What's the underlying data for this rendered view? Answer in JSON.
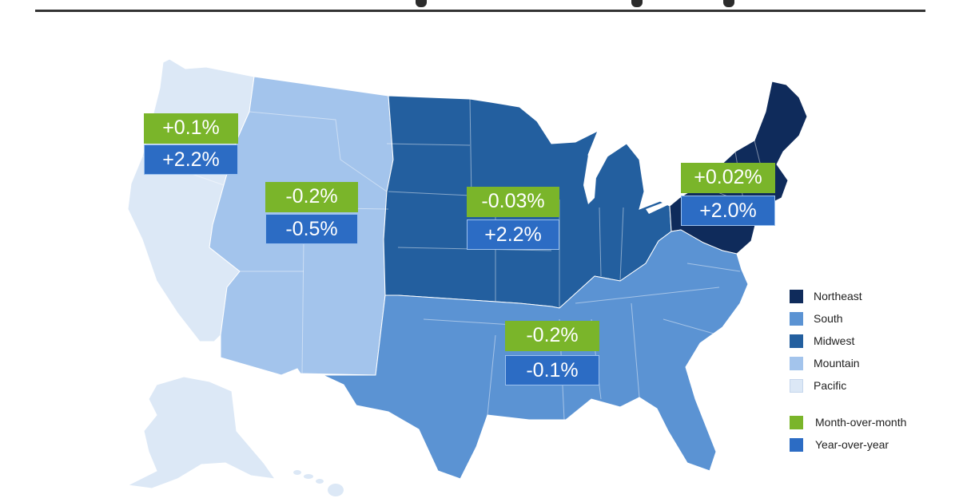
{
  "colors": {
    "northeast": "#0f2b5b",
    "south": "#5b93d3",
    "midwest": "#235f9f",
    "mountain": "#a3c4ec",
    "pacific": "#dce8f6",
    "month_over_month": "#7ab52a",
    "year_over_year": "#2c6cc4"
  },
  "regions": {
    "pacific": {
      "mom": "+0.1%",
      "yoy": "+2.2%"
    },
    "mountain": {
      "mom": "-0.2%",
      "yoy": "-0.5%"
    },
    "midwest": {
      "mom": "-0.03%",
      "yoy": "+2.2%"
    },
    "northeast": {
      "mom": "+0.02%",
      "yoy": "+2.0%"
    },
    "south": {
      "mom": "-0.2%",
      "yoy": "-0.1%"
    }
  },
  "legend": {
    "items": [
      {
        "label": "Northeast",
        "color": "#0f2b5b"
      },
      {
        "label": "South",
        "color": "#5b93d3"
      },
      {
        "label": "Midwest",
        "color": "#235f9f"
      },
      {
        "label": "Mountain",
        "color": "#a3c4ec"
      },
      {
        "label": "Pacific",
        "color": "#dce8f6"
      }
    ],
    "measures": [
      {
        "label": "Month-over-month",
        "color": "#7ab52a"
      },
      {
        "label": "Year-over-year",
        "color": "#2c6cc4"
      }
    ]
  }
}
